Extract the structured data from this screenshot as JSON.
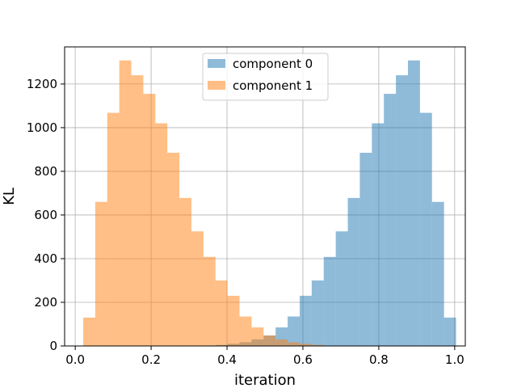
{
  "chart_data": {
    "type": "histogram",
    "xlabel": "iteration",
    "ylabel": "KL",
    "xlim": [
      -0.028,
      1.028
    ],
    "ylim": [
      0,
      1370
    ],
    "x_ticks": [
      0.0,
      0.2,
      0.4,
      0.6,
      0.8,
      1.0
    ],
    "x_tick_labels": [
      "0.0",
      "0.2",
      "0.4",
      "0.6",
      "0.8",
      "1.0"
    ],
    "y_ticks": [
      0,
      200,
      400,
      600,
      800,
      1000,
      1200
    ],
    "y_tick_labels": [
      "0",
      "200",
      "400",
      "600",
      "800",
      "1000",
      "1200"
    ],
    "grid": true,
    "legend_position": "top-center",
    "bin_width": 0.0317,
    "series": [
      {
        "name": "component 0",
        "color": "#1f77b4",
        "opacity": 0.5,
        "bins": [
          [
            0.0209,
            0
          ],
          [
            0.0526,
            0
          ],
          [
            0.0843,
            0
          ],
          [
            0.116,
            0
          ],
          [
            0.1477,
            0
          ],
          [
            0.1794,
            0
          ],
          [
            0.2111,
            0
          ],
          [
            0.2428,
            0
          ],
          [
            0.2745,
            0
          ],
          [
            0.3062,
            0
          ],
          [
            0.3379,
            2
          ],
          [
            0.3696,
            5
          ],
          [
            0.4013,
            10
          ],
          [
            0.433,
            17
          ],
          [
            0.4647,
            30
          ],
          [
            0.4964,
            48
          ],
          [
            0.5281,
            85
          ],
          [
            0.5598,
            135
          ],
          [
            0.5915,
            230
          ],
          [
            0.6232,
            300
          ],
          [
            0.6549,
            408
          ],
          [
            0.6866,
            525
          ],
          [
            0.7183,
            678
          ],
          [
            0.75,
            885
          ],
          [
            0.7817,
            1020
          ],
          [
            0.8134,
            1155
          ],
          [
            0.8451,
            1240
          ],
          [
            0.8768,
            1308
          ],
          [
            0.9085,
            1068
          ],
          [
            0.9402,
            660
          ],
          [
            0.9719,
            130
          ]
        ]
      },
      {
        "name": "component 1",
        "color": "#ff7f0e",
        "opacity": 0.5,
        "bins": [
          [
            0.0209,
            130
          ],
          [
            0.0526,
            660
          ],
          [
            0.0843,
            1068
          ],
          [
            0.116,
            1308
          ],
          [
            0.1477,
            1240
          ],
          [
            0.1794,
            1155
          ],
          [
            0.2111,
            1020
          ],
          [
            0.2428,
            885
          ],
          [
            0.2745,
            678
          ],
          [
            0.3062,
            525
          ],
          [
            0.3379,
            408
          ],
          [
            0.3696,
            300
          ],
          [
            0.4013,
            230
          ],
          [
            0.433,
            135
          ],
          [
            0.4647,
            85
          ],
          [
            0.4964,
            48
          ],
          [
            0.5281,
            30
          ],
          [
            0.5598,
            17
          ],
          [
            0.5915,
            10
          ],
          [
            0.6232,
            5
          ],
          [
            0.6549,
            2
          ],
          [
            0.6866,
            0
          ],
          [
            0.7183,
            0
          ],
          [
            0.75,
            0
          ],
          [
            0.7817,
            0
          ],
          [
            0.8134,
            0
          ],
          [
            0.8451,
            0
          ],
          [
            0.8768,
            0
          ],
          [
            0.9085,
            0
          ],
          [
            0.9402,
            0
          ],
          [
            0.9719,
            0
          ]
        ]
      }
    ]
  }
}
